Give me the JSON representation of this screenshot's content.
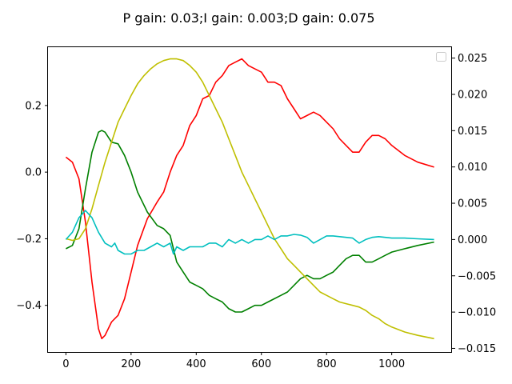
{
  "chart_data": {
    "type": "line",
    "title": "P gain: 0.03;I gain: 0.003;D gain: 0.075",
    "xlim": [
      -55,
      1185
    ],
    "ylim_left": [
      -0.54,
      0.375
    ],
    "ylim_right": [
      -0.0155,
      0.0265
    ],
    "x_ticks": [
      0,
      200,
      400,
      600,
      800,
      1000
    ],
    "y_left_ticks": [
      0.2,
      0.0,
      -0.2,
      -0.4
    ],
    "y_left_tick_labels": [
      "0.2",
      "0.0",
      "−0.2",
      "−0.4"
    ],
    "y_right_ticks": [
      0.025,
      0.02,
      0.015,
      0.01,
      0.005,
      0.0,
      -0.005,
      -0.01,
      -0.015
    ],
    "y_right_tick_labels": [
      "0.025",
      "0.020",
      "0.015",
      "0.010",
      "0.005",
      "0.000",
      "−0.005",
      "−0.010",
      "−0.015"
    ],
    "legend": {
      "placement": "top-right",
      "entries": []
    },
    "series": [
      {
        "color": "#ff0000",
        "axis": "left",
        "x": [
          0,
          20,
          40,
          60,
          80,
          100,
          110,
          120,
          140,
          160,
          180,
          200,
          220,
          250,
          280,
          300,
          320,
          340,
          360,
          380,
          400,
          420,
          440,
          460,
          480,
          500,
          520,
          540,
          560,
          580,
          600,
          620,
          640,
          660,
          680,
          700,
          720,
          740,
          760,
          780,
          800,
          820,
          840,
          860,
          880,
          900,
          920,
          940,
          960,
          980,
          1000,
          1040,
          1080,
          1130
        ],
        "values": [
          0.045,
          0.03,
          -0.02,
          -0.15,
          -0.33,
          -0.47,
          -0.5,
          -0.49,
          -0.45,
          -0.43,
          -0.38,
          -0.3,
          -0.22,
          -0.14,
          -0.09,
          -0.06,
          0.0,
          0.05,
          0.08,
          0.14,
          0.17,
          0.22,
          0.23,
          0.27,
          0.29,
          0.32,
          0.33,
          0.34,
          0.32,
          0.31,
          0.3,
          0.27,
          0.27,
          0.26,
          0.22,
          0.19,
          0.16,
          0.17,
          0.18,
          0.17,
          0.15,
          0.13,
          0.1,
          0.08,
          0.06,
          0.06,
          0.09,
          0.11,
          0.11,
          0.1,
          0.08,
          0.05,
          0.03,
          0.015
        ]
      },
      {
        "color": "#008000",
        "axis": "left",
        "x": [
          0,
          20,
          40,
          60,
          80,
          100,
          110,
          120,
          140,
          160,
          180,
          200,
          220,
          250,
          280,
          300,
          320,
          340,
          360,
          380,
          400,
          420,
          440,
          460,
          480,
          500,
          520,
          540,
          560,
          580,
          600,
          620,
          640,
          660,
          680,
          700,
          720,
          740,
          760,
          780,
          800,
          820,
          840,
          860,
          880,
          900,
          920,
          940,
          960,
          980,
          1000,
          1040,
          1080,
          1130
        ],
        "values": [
          -0.23,
          -0.22,
          -0.17,
          -0.05,
          0.06,
          0.12,
          0.125,
          0.12,
          0.09,
          0.085,
          0.05,
          0.0,
          -0.06,
          -0.12,
          -0.16,
          -0.17,
          -0.19,
          -0.27,
          -0.3,
          -0.33,
          -0.34,
          -0.35,
          -0.37,
          -0.38,
          -0.39,
          -0.41,
          -0.42,
          -0.42,
          -0.41,
          -0.4,
          -0.4,
          -0.39,
          -0.38,
          -0.37,
          -0.36,
          -0.34,
          -0.32,
          -0.31,
          -0.32,
          -0.32,
          -0.31,
          -0.3,
          -0.28,
          -0.26,
          -0.25,
          -0.25,
          -0.27,
          -0.27,
          -0.26,
          -0.25,
          -0.24,
          -0.23,
          -0.22,
          -0.21
        ]
      },
      {
        "color": "#bfbf00",
        "axis": "left",
        "x": [
          0,
          20,
          40,
          60,
          80,
          100,
          120,
          140,
          160,
          180,
          200,
          220,
          240,
          260,
          280,
          300,
          320,
          340,
          360,
          380,
          400,
          420,
          440,
          460,
          480,
          500,
          520,
          540,
          560,
          580,
          600,
          620,
          640,
          660,
          680,
          700,
          720,
          740,
          760,
          780,
          800,
          820,
          840,
          860,
          880,
          900,
          920,
          940,
          960,
          980,
          1000,
          1040,
          1080,
          1130
        ],
        "values": [
          -0.2,
          -0.205,
          -0.2,
          -0.17,
          -0.11,
          -0.04,
          0.03,
          0.09,
          0.15,
          0.19,
          0.23,
          0.265,
          0.29,
          0.31,
          0.325,
          0.335,
          0.34,
          0.34,
          0.335,
          0.32,
          0.3,
          0.27,
          0.23,
          0.19,
          0.15,
          0.1,
          0.05,
          0.0,
          -0.04,
          -0.08,
          -0.12,
          -0.16,
          -0.2,
          -0.23,
          -0.26,
          -0.28,
          -0.3,
          -0.32,
          -0.34,
          -0.36,
          -0.37,
          -0.38,
          -0.39,
          -0.395,
          -0.4,
          -0.405,
          -0.415,
          -0.43,
          -0.44,
          -0.455,
          -0.465,
          -0.48,
          -0.49,
          -0.5
        ]
      },
      {
        "color": "#00bfbf",
        "axis": "right",
        "x": [
          0,
          20,
          40,
          60,
          80,
          100,
          120,
          140,
          150,
          160,
          180,
          200,
          220,
          240,
          260,
          280,
          300,
          320,
          330,
          340,
          360,
          380,
          400,
          420,
          440,
          460,
          480,
          500,
          520,
          540,
          560,
          580,
          600,
          620,
          640,
          660,
          680,
          700,
          720,
          740,
          760,
          780,
          800,
          820,
          840,
          860,
          880,
          900,
          920,
          940,
          960,
          980,
          1000,
          1040,
          1080,
          1130
        ],
        "values": [
          0.0,
          0.001,
          0.003,
          0.004,
          0.003,
          0.001,
          -0.0005,
          -0.001,
          -0.0005,
          -0.0015,
          -0.002,
          -0.002,
          -0.0015,
          -0.0015,
          -0.001,
          -0.0005,
          -0.001,
          -0.0005,
          -0.002,
          -0.001,
          -0.0015,
          -0.001,
          -0.001,
          -0.001,
          -0.0005,
          -0.0005,
          -0.001,
          0.0,
          -0.0005,
          0.0,
          -0.0005,
          0.0,
          0.0,
          0.0005,
          0.0,
          0.0005,
          0.0005,
          0.0007,
          0.0006,
          0.0003,
          -0.0005,
          0.0,
          0.0005,
          0.0005,
          0.0004,
          0.0003,
          0.0002,
          -0.0005,
          0.0,
          0.0003,
          0.0004,
          0.0003,
          0.0002,
          0.0002,
          0.0001,
          0.0
        ]
      }
    ]
  }
}
